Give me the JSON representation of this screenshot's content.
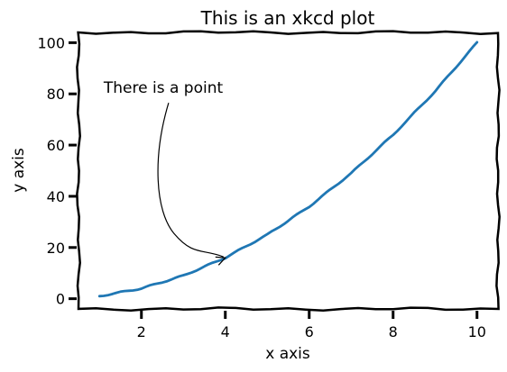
{
  "chart_data": {
    "type": "line",
    "title": "This is an xkcd plot",
    "xlabel": "x axis",
    "ylabel": "y axis",
    "xlim": [
      0.5,
      10.5
    ],
    "ylim": [
      -4,
      104
    ],
    "grid": false,
    "xticks": [
      2,
      4,
      6,
      8,
      10
    ],
    "yticks": [
      0,
      20,
      40,
      60,
      80,
      100
    ],
    "series": [
      {
        "color": "#1f77b4",
        "x": [
          1,
          2,
          3,
          4,
          5,
          6,
          7,
          8,
          9,
          10
        ],
        "y": [
          1,
          4,
          9,
          16,
          25,
          36,
          49,
          64,
          81,
          100
        ]
      }
    ],
    "annotations": [
      {
        "text": "There is a point",
        "x": 4,
        "y": 16,
        "text_x": 1.1,
        "text_y": 80
      }
    ]
  }
}
